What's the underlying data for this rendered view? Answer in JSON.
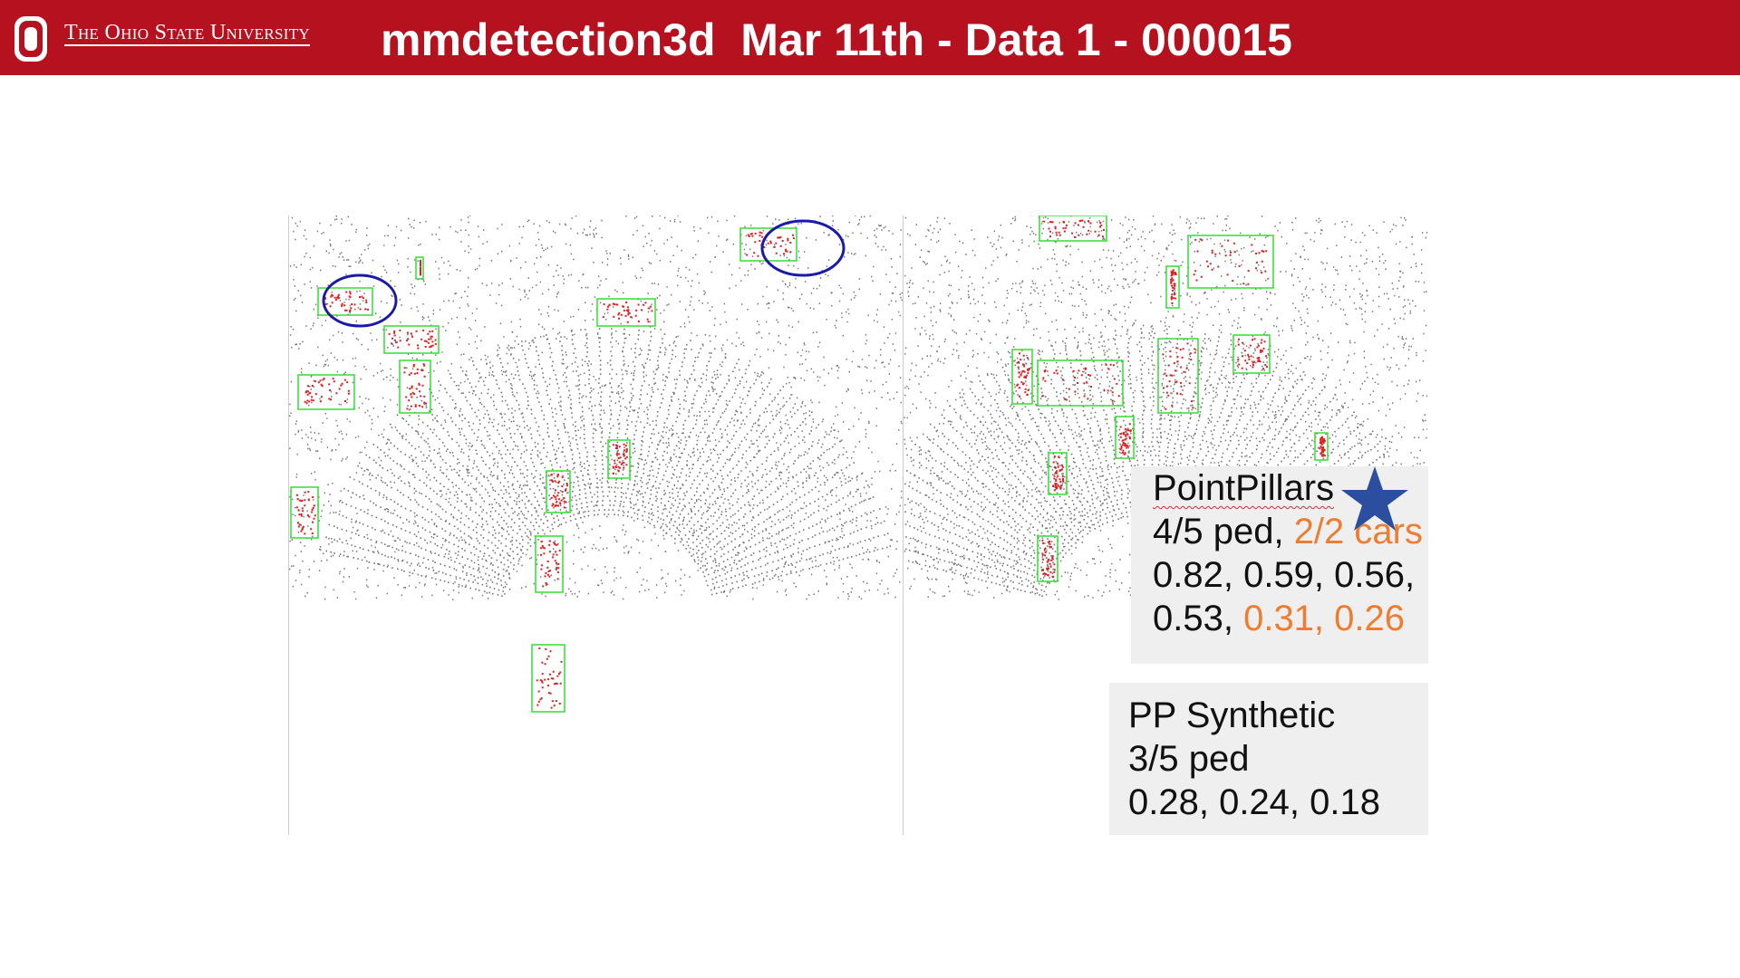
{
  "header": {
    "university": "The Ohio State University",
    "title": "mmdetection3d  Mar 11th - Data 1 - 000015"
  },
  "colors": {
    "header_bg": "#b5111f",
    "highlight_orange": "#ed7d31",
    "star_blue": "#2b4f9e",
    "box_green": "#33dd33",
    "points_red": "#e02020",
    "points_gray": "#777777",
    "circle_blue": "#1a1aa8"
  },
  "panels": {
    "left": {
      "label": "point-cloud-pointpillars",
      "icon": "point-cloud"
    },
    "right": {
      "label": "point-cloud-pp-synthetic",
      "icon": "point-cloud"
    }
  },
  "pointpillars": {
    "name": "PointPillars",
    "line2_a": "4/5 ped, ",
    "line2_b": "2/2 cars",
    "line3": "0.82, 0.59, 0.56,",
    "line4_a": "0.53, ",
    "line4_b": "0.31, 0.26",
    "icon": "star-icon"
  },
  "pp_synthetic": {
    "name": "PP Synthetic",
    "line2": "3/5 ped",
    "line3": "0.28, 0.24, 0.18"
  }
}
